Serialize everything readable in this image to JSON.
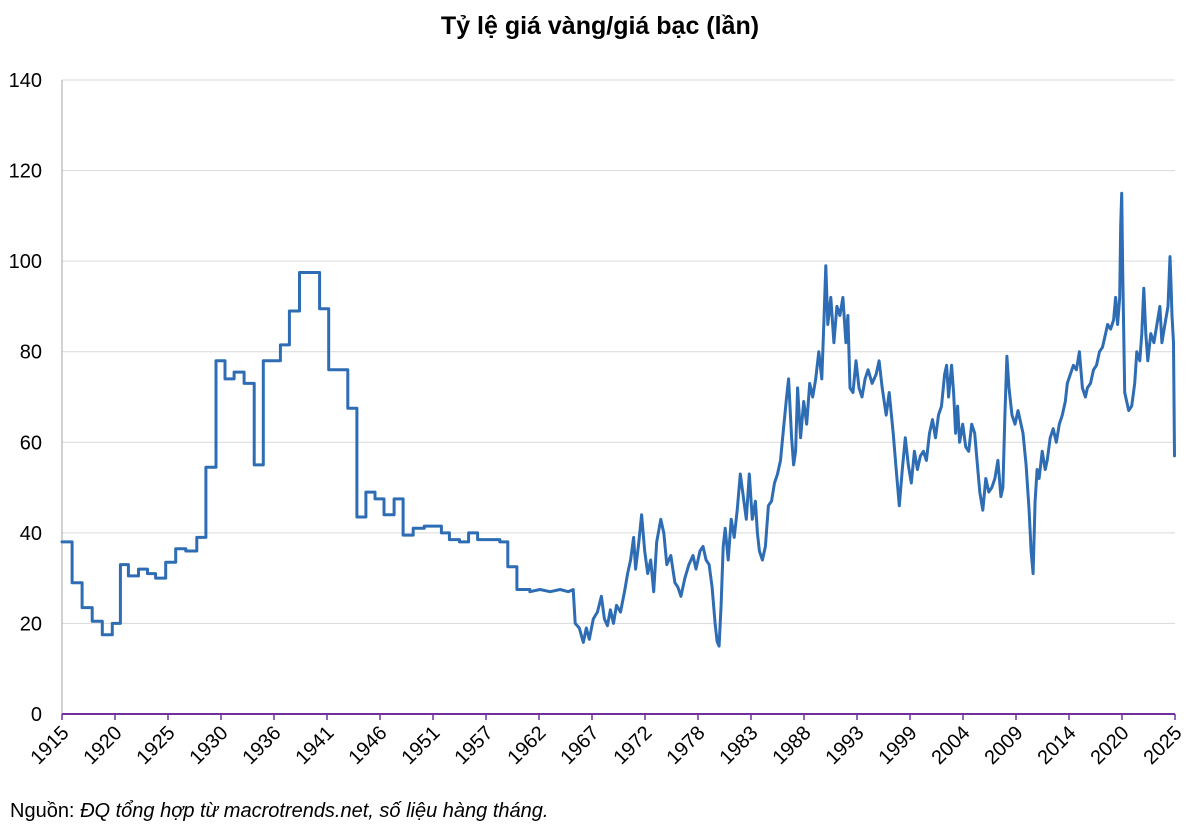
{
  "chart_data": {
    "type": "line",
    "title": "Tỷ lệ giá vàng/giá bạc (lần)",
    "xlabel": "",
    "ylabel": "",
    "ylim": [
      0,
      140
    ],
    "yticks": [
      0,
      20,
      40,
      60,
      80,
      100,
      120,
      140
    ],
    "grid": true,
    "legend": "none",
    "x_tick_labels": [
      "1915",
      "1920",
      "1925",
      "1930",
      "1936",
      "1941",
      "1946",
      "1951",
      "1957",
      "1962",
      "1967",
      "1972",
      "1978",
      "1983",
      "1988",
      "1993",
      "1999",
      "2004",
      "2009",
      "2014",
      "2020",
      "2025"
    ],
    "x_range": [
      1915,
      2025.6
    ],
    "series": [
      {
        "name": "Tỷ lệ giá vàng/giá bạc",
        "color": "#2E6DB4",
        "points": [
          [
            1915.0,
            38
          ],
          [
            1916.0,
            38
          ],
          [
            1916.0,
            29
          ],
          [
            1917.0,
            29
          ],
          [
            1917.0,
            23.5
          ],
          [
            1918.0,
            23.5
          ],
          [
            1918.0,
            20.5
          ],
          [
            1919.0,
            20.5
          ],
          [
            1919.0,
            17.5
          ],
          [
            1920.0,
            17.5
          ],
          [
            1920.0,
            20
          ],
          [
            1920.8,
            20
          ],
          [
            1920.8,
            33
          ],
          [
            1921.6,
            33
          ],
          [
            1921.6,
            30.5
          ],
          [
            1922.6,
            30.5
          ],
          [
            1922.6,
            32
          ],
          [
            1923.5,
            32
          ],
          [
            1923.5,
            31
          ],
          [
            1924.3,
            31
          ],
          [
            1924.3,
            30
          ],
          [
            1925.3,
            30
          ],
          [
            1925.3,
            33.5
          ],
          [
            1926.3,
            33.5
          ],
          [
            1926.3,
            36.5
          ],
          [
            1927.3,
            36.5
          ],
          [
            1927.3,
            36
          ],
          [
            1928.4,
            36
          ],
          [
            1928.4,
            39
          ],
          [
            1929.3,
            39
          ],
          [
            1929.3,
            54.5
          ],
          [
            1930.3,
            54.5
          ],
          [
            1930.3,
            78
          ],
          [
            1931.2,
            78
          ],
          [
            1931.2,
            74
          ],
          [
            1932.1,
            74
          ],
          [
            1932.1,
            75.5
          ],
          [
            1933.1,
            75.5
          ],
          [
            1933.1,
            73
          ],
          [
            1934.1,
            73
          ],
          [
            1934.1,
            55
          ],
          [
            1935.0,
            55
          ],
          [
            1935.0,
            78
          ],
          [
            1936.7,
            78
          ],
          [
            1936.7,
            81.5
          ],
          [
            1937.6,
            81.5
          ],
          [
            1937.6,
            89
          ],
          [
            1938.6,
            89
          ],
          [
            1938.6,
            97.5
          ],
          [
            1940.6,
            97.5
          ],
          [
            1940.6,
            89.5
          ],
          [
            1941.5,
            89.5
          ],
          [
            1941.5,
            76
          ],
          [
            1943.4,
            76
          ],
          [
            1943.4,
            67.5
          ],
          [
            1944.3,
            67.5
          ],
          [
            1944.3,
            43.5
          ],
          [
            1945.2,
            43.5
          ],
          [
            1945.2,
            49
          ],
          [
            1946.1,
            49
          ],
          [
            1946.1,
            47.5
          ],
          [
            1947.0,
            47.5
          ],
          [
            1947.0,
            44
          ],
          [
            1948.0,
            44
          ],
          [
            1948.0,
            47.5
          ],
          [
            1948.9,
            47.5
          ],
          [
            1948.9,
            39.5
          ],
          [
            1949.9,
            39.5
          ],
          [
            1949.9,
            41
          ],
          [
            1951.0,
            41
          ],
          [
            1951.0,
            41.5
          ],
          [
            1952.7,
            41.5
          ],
          [
            1952.7,
            40
          ],
          [
            1953.5,
            40
          ],
          [
            1953.5,
            38.5
          ],
          [
            1954.5,
            38.5
          ],
          [
            1954.5,
            38
          ],
          [
            1955.4,
            38
          ],
          [
            1955.4,
            40
          ],
          [
            1956.3,
            40
          ],
          [
            1956.3,
            38.5
          ],
          [
            1958.5,
            38.5
          ],
          [
            1958.5,
            38
          ],
          [
            1959.3,
            38
          ],
          [
            1959.3,
            32.5
          ],
          [
            1960.2,
            32.5
          ],
          [
            1960.2,
            27.5
          ],
          [
            1961.5,
            27.5
          ],
          [
            1961.5,
            27
          ],
          [
            1962.5,
            27.5
          ],
          [
            1963.5,
            27
          ],
          [
            1964.5,
            27.5
          ],
          [
            1965.3,
            27
          ],
          [
            1965.8,
            27.5
          ],
          [
            1966.0,
            20
          ],
          [
            1966.4,
            19
          ],
          [
            1966.8,
            15.8
          ],
          [
            1967.1,
            19
          ],
          [
            1967.4,
            16.5
          ],
          [
            1967.8,
            21
          ],
          [
            1968.2,
            22.5
          ],
          [
            1968.6,
            26
          ],
          [
            1968.9,
            21
          ],
          [
            1969.2,
            19.5
          ],
          [
            1969.5,
            23
          ],
          [
            1969.8,
            20
          ],
          [
            1970.1,
            24
          ],
          [
            1970.5,
            22.5
          ],
          [
            1970.9,
            27
          ],
          [
            1971.2,
            31
          ],
          [
            1971.5,
            34
          ],
          [
            1971.8,
            39
          ],
          [
            1972.0,
            32
          ],
          [
            1972.3,
            37.5
          ],
          [
            1972.6,
            44
          ],
          [
            1972.9,
            36
          ],
          [
            1973.2,
            31
          ],
          [
            1973.5,
            34
          ],
          [
            1973.8,
            27
          ],
          [
            1974.1,
            38
          ],
          [
            1974.5,
            43
          ],
          [
            1974.8,
            40
          ],
          [
            1975.1,
            33
          ],
          [
            1975.5,
            35
          ],
          [
            1975.9,
            29
          ],
          [
            1976.2,
            28
          ],
          [
            1976.5,
            26
          ],
          [
            1976.9,
            30
          ],
          [
            1977.3,
            33
          ],
          [
            1977.7,
            35
          ],
          [
            1978.0,
            32
          ],
          [
            1978.4,
            36
          ],
          [
            1978.7,
            37
          ],
          [
            1979.0,
            34
          ],
          [
            1979.3,
            33
          ],
          [
            1979.6,
            28
          ],
          [
            1979.9,
            20
          ],
          [
            1980.1,
            16
          ],
          [
            1980.3,
            15
          ],
          [
            1980.5,
            24
          ],
          [
            1980.7,
            37
          ],
          [
            1980.9,
            41
          ],
          [
            1981.2,
            34
          ],
          [
            1981.5,
            43
          ],
          [
            1981.8,
            39
          ],
          [
            1982.1,
            45
          ],
          [
            1982.4,
            53
          ],
          [
            1982.7,
            48
          ],
          [
            1983.0,
            43
          ],
          [
            1983.3,
            53
          ],
          [
            1983.6,
            43
          ],
          [
            1983.9,
            47
          ],
          [
            1984.1,
            40
          ],
          [
            1984.3,
            36
          ],
          [
            1984.6,
            34
          ],
          [
            1984.9,
            37
          ],
          [
            1985.2,
            46
          ],
          [
            1985.5,
            47
          ],
          [
            1985.8,
            51
          ],
          [
            1986.1,
            53
          ],
          [
            1986.4,
            56
          ],
          [
            1986.7,
            63
          ],
          [
            1987.0,
            70
          ],
          [
            1987.2,
            74
          ],
          [
            1987.5,
            61
          ],
          [
            1987.7,
            55
          ],
          [
            1987.9,
            58
          ],
          [
            1988.1,
            72
          ],
          [
            1988.4,
            61
          ],
          [
            1988.7,
            69
          ],
          [
            1989.0,
            64
          ],
          [
            1989.3,
            73
          ],
          [
            1989.6,
            70
          ],
          [
            1989.9,
            74
          ],
          [
            1990.2,
            80
          ],
          [
            1990.5,
            74
          ],
          [
            1990.7,
            86
          ],
          [
            1990.9,
            99
          ],
          [
            1991.1,
            86
          ],
          [
            1991.4,
            92
          ],
          [
            1991.7,
            82
          ],
          [
            1992.0,
            90
          ],
          [
            1992.3,
            88
          ],
          [
            1992.6,
            92
          ],
          [
            1992.9,
            82
          ],
          [
            1993.1,
            88
          ],
          [
            1993.3,
            72
          ],
          [
            1993.6,
            71
          ],
          [
            1993.9,
            78
          ],
          [
            1994.2,
            72
          ],
          [
            1994.5,
            70
          ],
          [
            1994.8,
            74
          ],
          [
            1995.1,
            76
          ],
          [
            1995.5,
            73
          ],
          [
            1995.9,
            75
          ],
          [
            1996.2,
            78
          ],
          [
            1996.5,
            72
          ],
          [
            1996.9,
            66
          ],
          [
            1997.2,
            71
          ],
          [
            1997.6,
            62
          ],
          [
            1997.9,
            54
          ],
          [
            1998.2,
            46
          ],
          [
            1998.5,
            54
          ],
          [
            1998.8,
            61
          ],
          [
            1999.1,
            55
          ],
          [
            1999.4,
            51
          ],
          [
            1999.7,
            58
          ],
          [
            2000.0,
            54
          ],
          [
            2000.3,
            57
          ],
          [
            2000.6,
            58
          ],
          [
            2000.9,
            56
          ],
          [
            2001.2,
            62
          ],
          [
            2001.5,
            65
          ],
          [
            2001.8,
            61
          ],
          [
            2002.1,
            66
          ],
          [
            2002.4,
            68
          ],
          [
            2002.7,
            75
          ],
          [
            2002.9,
            77
          ],
          [
            2003.1,
            70
          ],
          [
            2003.4,
            77
          ],
          [
            2003.6,
            71
          ],
          [
            2003.8,
            62
          ],
          [
            2004.0,
            68
          ],
          [
            2004.2,
            60
          ],
          [
            2004.5,
            64
          ],
          [
            2004.8,
            59
          ],
          [
            2005.1,
            58
          ],
          [
            2005.4,
            64
          ],
          [
            2005.7,
            62
          ],
          [
            2006.0,
            54
          ],
          [
            2006.2,
            49
          ],
          [
            2006.5,
            45
          ],
          [
            2006.8,
            52
          ],
          [
            2007.1,
            49
          ],
          [
            2007.4,
            50
          ],
          [
            2007.7,
            52
          ],
          [
            2008.0,
            56
          ],
          [
            2008.3,
            48
          ],
          [
            2008.5,
            50
          ],
          [
            2008.7,
            66
          ],
          [
            2008.9,
            79
          ],
          [
            2009.1,
            72
          ],
          [
            2009.4,
            66
          ],
          [
            2009.7,
            64
          ],
          [
            2010.0,
            67
          ],
          [
            2010.3,
            64
          ],
          [
            2010.5,
            62
          ],
          [
            2010.8,
            55
          ],
          [
            2011.1,
            45
          ],
          [
            2011.3,
            36
          ],
          [
            2011.5,
            31
          ],
          [
            2011.7,
            47
          ],
          [
            2011.9,
            54
          ],
          [
            2012.1,
            52
          ],
          [
            2012.4,
            58
          ],
          [
            2012.7,
            54
          ],
          [
            2012.9,
            56
          ],
          [
            2013.2,
            61
          ],
          [
            2013.5,
            63
          ],
          [
            2013.8,
            60
          ],
          [
            2014.1,
            64
          ],
          [
            2014.4,
            66
          ],
          [
            2014.7,
            69
          ],
          [
            2014.9,
            73
          ],
          [
            2015.2,
            75
          ],
          [
            2015.5,
            77
          ],
          [
            2015.8,
            76
          ],
          [
            2016.1,
            80
          ],
          [
            2016.4,
            72
          ],
          [
            2016.7,
            70
          ],
          [
            2016.9,
            72
          ],
          [
            2017.2,
            73
          ],
          [
            2017.5,
            76
          ],
          [
            2017.8,
            77
          ],
          [
            2018.1,
            80
          ],
          [
            2018.4,
            81
          ],
          [
            2018.7,
            84
          ],
          [
            2018.9,
            86
          ],
          [
            2019.2,
            85
          ],
          [
            2019.5,
            87
          ],
          [
            2019.7,
            92
          ],
          [
            2019.9,
            86
          ],
          [
            2020.1,
            92
          ],
          [
            2020.2,
            108
          ],
          [
            2020.3,
            115
          ],
          [
            2020.4,
            98
          ],
          [
            2020.6,
            71
          ],
          [
            2020.8,
            69
          ],
          [
            2021.0,
            67
          ],
          [
            2021.3,
            68
          ],
          [
            2021.6,
            73
          ],
          [
            2021.8,
            80
          ],
          [
            2022.1,
            78
          ],
          [
            2022.3,
            84
          ],
          [
            2022.5,
            94
          ],
          [
            2022.7,
            84
          ],
          [
            2022.9,
            78
          ],
          [
            2023.2,
            84
          ],
          [
            2023.5,
            82
          ],
          [
            2023.8,
            86
          ],
          [
            2024.1,
            90
          ],
          [
            2024.3,
            82
          ],
          [
            2024.6,
            86
          ],
          [
            2024.9,
            90
          ],
          [
            2025.1,
            101
          ],
          [
            2025.2,
            95
          ],
          [
            2025.3,
            88
          ],
          [
            2025.45,
            82
          ],
          [
            2025.55,
            57
          ]
        ]
      }
    ]
  },
  "source": {
    "label": "Nguồn:",
    "text": "ĐQ tổng hợp từ macrotrends.net, số liệu hàng tháng."
  }
}
